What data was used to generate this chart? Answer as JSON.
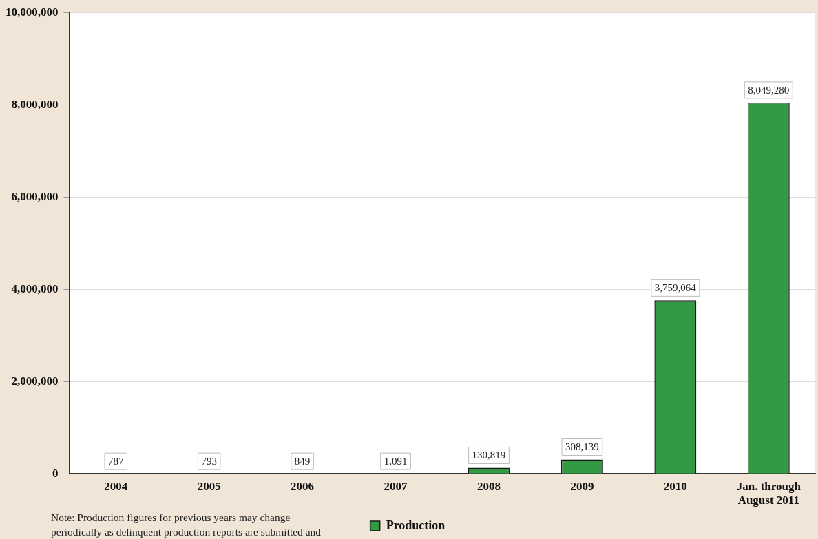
{
  "chart_data": {
    "type": "bar",
    "categories": [
      "2004",
      "2005",
      "2006",
      "2007",
      "2008",
      "2009",
      "2010",
      "Jan. through\nAugust 2011"
    ],
    "series": [
      {
        "name": "Production",
        "color": "#339944",
        "values": [
          787,
          793,
          849,
          1091,
          130819,
          308139,
          3759064,
          8049280
        ],
        "value_labels": [
          "787",
          "793",
          "849",
          "1,091",
          "130,819",
          "308,139",
          "3,759,064",
          "8,049,280"
        ]
      }
    ],
    "ylim": [
      0,
      10000000
    ],
    "yticks": [
      {
        "value": 0,
        "label": "0"
      },
      {
        "value": 2000000,
        "label": "2,000,000"
      },
      {
        "value": 4000000,
        "label": "4,000,000"
      },
      {
        "value": 6000000,
        "label": "6,000,000"
      },
      {
        "value": 8000000,
        "label": "8,000,000"
      },
      {
        "value": 10000000,
        "label": "10,000,000"
      }
    ],
    "grid": "y",
    "legend": "bottom",
    "annotations": [
      "Note: Production figures for previous years may change periodically as delinquent production reports are submitted and"
    ]
  }
}
